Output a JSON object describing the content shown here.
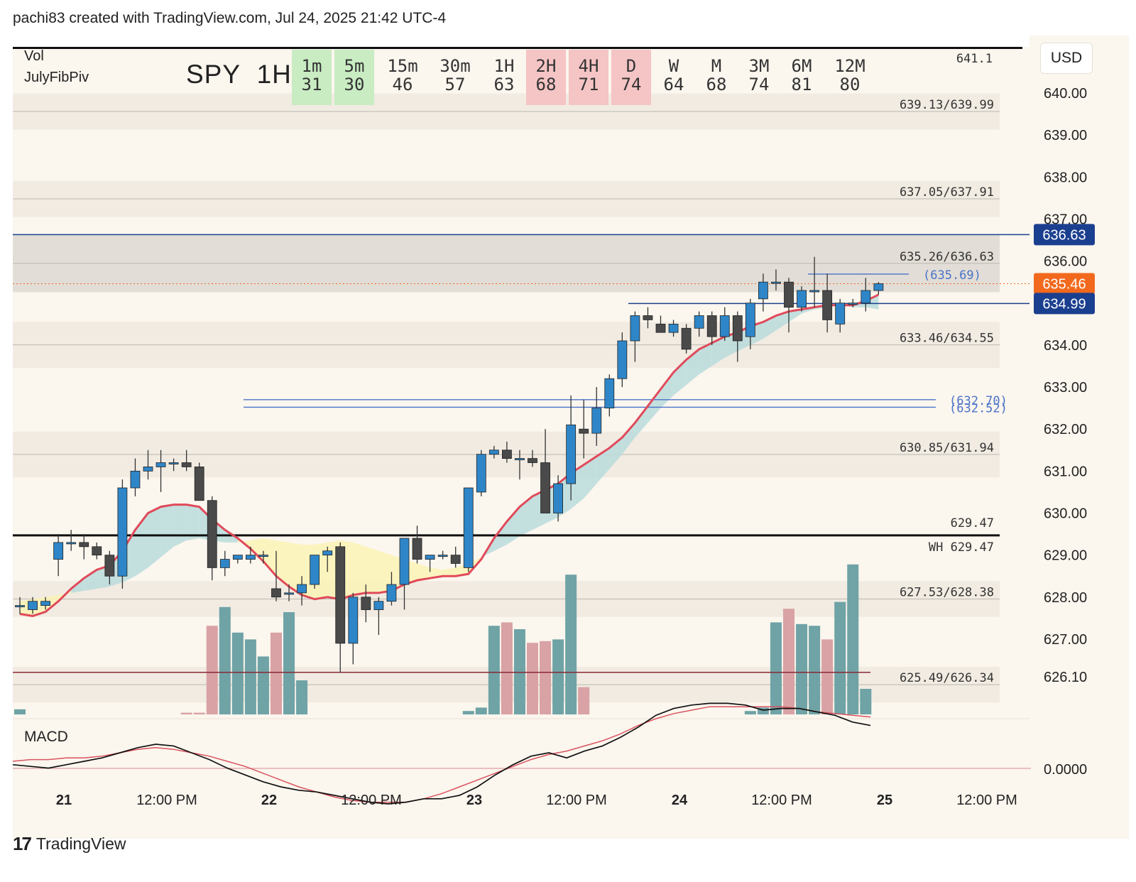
{
  "header_text": "pachi83 created with TradingView.com, Jul 24, 2025 21:42 UTC-4",
  "legend": {
    "vol": "Vol",
    "indicator": "JulyFibPiv"
  },
  "symbol": {
    "ticker": "SPY",
    "interval": "1H"
  },
  "currency": "USD",
  "macd_label": "MACD",
  "brand": "TradingView",
  "top_value": "641.1",
  "timeframes": [
    {
      "tf": "1m",
      "val": "31",
      "color": "green"
    },
    {
      "tf": "5m",
      "val": "30",
      "color": "green"
    },
    {
      "tf": "15m",
      "val": "46",
      "color": "none"
    },
    {
      "tf": "30m",
      "val": "57",
      "color": "none"
    },
    {
      "tf": "1H",
      "val": "63",
      "color": "none"
    },
    {
      "tf": "2H",
      "val": "68",
      "color": "red"
    },
    {
      "tf": "4H",
      "val": "71",
      "color": "red"
    },
    {
      "tf": "D",
      "val": "74",
      "color": "red"
    },
    {
      "tf": "W",
      "val": "64",
      "color": "none"
    },
    {
      "tf": "M",
      "val": "68",
      "color": "none"
    },
    {
      "tf": "3M",
      "val": "74",
      "color": "none"
    },
    {
      "tf": "6M",
      "val": "81",
      "color": "none"
    },
    {
      "tf": "12M",
      "val": "80",
      "color": "none"
    }
  ],
  "colors": {
    "up": "#2e86c8",
    "down": "#4a4a4a",
    "ema": "#e04a5a",
    "cloud_bull": "#b9dcdc",
    "cloud_bear": "#fbf3b5",
    "vol_up": "#6fa3a6",
    "vol_down": "#d9a2a5",
    "last_price": "#f2691d",
    "level_blue": "#1b3f8f"
  },
  "chart_data": {
    "type": "candlestick",
    "title": "SPY 1H",
    "ylim": [
      625.5,
      641.1
    ],
    "y_ticks": [
      "640.00",
      "639.00",
      "638.00",
      "637.00",
      "636.00",
      "634.00",
      "633.00",
      "632.00",
      "631.00",
      "630.00",
      "629.00",
      "628.00",
      "627.00",
      "626.10"
    ],
    "x_tick_labels": [
      "21",
      "12:00 PM",
      "22",
      "12:00 PM",
      "23",
      "12:00 PM",
      "24",
      "12:00 PM",
      "25",
      "12:00 PM"
    ],
    "price_badges": [
      {
        "label": "636.63",
        "price": 636.63,
        "color": "level_blue"
      },
      {
        "label": "635.46",
        "price": 635.46,
        "color": "last_price"
      },
      {
        "label": "634.99",
        "price": 634.99,
        "color": "level_blue"
      }
    ],
    "zones": [
      {
        "label": "639.13/639.99",
        "low": 639.13,
        "high": 639.99
      },
      {
        "label": "637.05/637.91",
        "low": 637.05,
        "high": 637.91
      },
      {
        "label": "635.26/636.63",
        "low": 635.26,
        "high": 636.63
      },
      {
        "label": "633.46/634.55",
        "low": 633.46,
        "high": 634.55
      },
      {
        "label": "630.85/631.94",
        "low": 630.85,
        "high": 631.94
      },
      {
        "label": "627.53/628.38",
        "low": 627.53,
        "high": 628.38
      },
      {
        "label": "625.49/626.34",
        "low": 625.49,
        "high": 626.34
      }
    ],
    "pivot_lines": [
      {
        "label": "629.47",
        "price": 629.47
      },
      {
        "label": "WH 629.47",
        "price": 629.47
      }
    ],
    "marked_levels": [
      {
        "label": "(635.69)",
        "price": 635.69
      },
      {
        "label": "(632.70)",
        "price": 632.7
      },
      {
        "label": "(632.52)",
        "price": 632.52
      }
    ],
    "candles": [
      {
        "o": 627.8,
        "h": 628.0,
        "l": 627.6,
        "c": 627.8
      },
      {
        "o": 627.7,
        "h": 628.0,
        "l": 627.6,
        "c": 627.9
      },
      {
        "o": 627.8,
        "h": 628.0,
        "l": 627.7,
        "c": 627.9
      },
      {
        "o": 628.9,
        "h": 629.5,
        "l": 628.5,
        "c": 629.3
      },
      {
        "o": 629.3,
        "h": 629.6,
        "l": 629.1,
        "c": 629.3
      },
      {
        "o": 629.3,
        "h": 629.5,
        "l": 628.9,
        "c": 629.2
      },
      {
        "o": 629.2,
        "h": 629.3,
        "l": 628.9,
        "c": 629.0
      },
      {
        "o": 629.0,
        "h": 629.1,
        "l": 628.3,
        "c": 628.5
      },
      {
        "o": 628.5,
        "h": 630.8,
        "l": 628.2,
        "c": 630.6
      },
      {
        "o": 630.6,
        "h": 631.3,
        "l": 630.4,
        "c": 631.0
      },
      {
        "o": 631.0,
        "h": 631.5,
        "l": 630.8,
        "c": 631.1
      },
      {
        "o": 631.1,
        "h": 631.5,
        "l": 630.5,
        "c": 631.2
      },
      {
        "o": 631.2,
        "h": 631.3,
        "l": 631.0,
        "c": 631.2
      },
      {
        "o": 631.2,
        "h": 631.5,
        "l": 631.0,
        "c": 631.1
      },
      {
        "o": 631.1,
        "h": 631.2,
        "l": 630.3,
        "c": 630.3
      },
      {
        "o": 630.3,
        "h": 630.4,
        "l": 628.4,
        "c": 628.7
      },
      {
        "o": 628.7,
        "h": 629.1,
        "l": 628.5,
        "c": 628.9
      },
      {
        "o": 628.9,
        "h": 629.0,
        "l": 628.8,
        "c": 629.0
      },
      {
        "o": 628.9,
        "h": 629.2,
        "l": 628.8,
        "c": 629.0
      },
      {
        "o": 629.0,
        "h": 629.1,
        "l": 628.8,
        "c": 629.0
      },
      {
        "o": 628.2,
        "h": 629.1,
        "l": 627.9,
        "c": 628.0
      },
      {
        "o": 628.1,
        "h": 628.3,
        "l": 627.9,
        "c": 628.1
      },
      {
        "o": 628.1,
        "h": 628.5,
        "l": 627.8,
        "c": 628.3
      },
      {
        "o": 628.3,
        "h": 629.0,
        "l": 628.2,
        "c": 629.0
      },
      {
        "o": 629.0,
        "h": 629.2,
        "l": 628.6,
        "c": 629.1
      },
      {
        "o": 629.2,
        "h": 629.3,
        "l": 626.2,
        "c": 626.9
      },
      {
        "o": 626.9,
        "h": 628.1,
        "l": 626.4,
        "c": 628.0
      },
      {
        "o": 628.0,
        "h": 628.3,
        "l": 627.4,
        "c": 627.7
      },
      {
        "o": 627.7,
        "h": 628.0,
        "l": 627.1,
        "c": 627.9
      },
      {
        "o": 627.9,
        "h": 628.6,
        "l": 627.8,
        "c": 628.3
      },
      {
        "o": 628.3,
        "h": 629.4,
        "l": 627.7,
        "c": 629.4
      },
      {
        "o": 629.4,
        "h": 629.7,
        "l": 628.8,
        "c": 628.9
      },
      {
        "o": 628.9,
        "h": 629.0,
        "l": 628.6,
        "c": 629.0
      },
      {
        "o": 629.0,
        "h": 629.1,
        "l": 628.9,
        "c": 629.0
      },
      {
        "o": 629.0,
        "h": 629.2,
        "l": 628.7,
        "c": 628.8
      },
      {
        "o": 628.7,
        "h": 630.6,
        "l": 628.6,
        "c": 630.6
      },
      {
        "o": 630.5,
        "h": 631.5,
        "l": 630.4,
        "c": 631.4
      },
      {
        "o": 631.4,
        "h": 631.6,
        "l": 631.3,
        "c": 631.5
      },
      {
        "o": 631.5,
        "h": 631.7,
        "l": 631.2,
        "c": 631.3
      },
      {
        "o": 631.3,
        "h": 631.5,
        "l": 630.8,
        "c": 631.3
      },
      {
        "o": 631.3,
        "h": 631.5,
        "l": 631.1,
        "c": 631.2
      },
      {
        "o": 631.2,
        "h": 632.0,
        "l": 630.0,
        "c": 630.0
      },
      {
        "o": 630.0,
        "h": 630.9,
        "l": 629.8,
        "c": 630.7
      },
      {
        "o": 630.7,
        "h": 632.8,
        "l": 630.3,
        "c": 632.1
      },
      {
        "o": 632.0,
        "h": 632.7,
        "l": 631.3,
        "c": 631.9
      },
      {
        "o": 631.9,
        "h": 633.0,
        "l": 631.6,
        "c": 632.5
      },
      {
        "o": 632.5,
        "h": 633.3,
        "l": 632.3,
        "c": 633.2
      },
      {
        "o": 633.2,
        "h": 634.3,
        "l": 633.0,
        "c": 634.1
      },
      {
        "o": 634.1,
        "h": 634.8,
        "l": 633.6,
        "c": 634.7
      },
      {
        "o": 634.7,
        "h": 634.9,
        "l": 634.4,
        "c": 634.6
      },
      {
        "o": 634.5,
        "h": 634.7,
        "l": 634.3,
        "c": 634.3
      },
      {
        "o": 634.3,
        "h": 634.6,
        "l": 634.2,
        "c": 634.5
      },
      {
        "o": 634.4,
        "h": 634.5,
        "l": 633.8,
        "c": 633.9
      },
      {
        "o": 634.4,
        "h": 634.8,
        "l": 634.2,
        "c": 634.7
      },
      {
        "o": 634.7,
        "h": 634.8,
        "l": 634.0,
        "c": 634.2
      },
      {
        "o": 634.2,
        "h": 634.9,
        "l": 634.1,
        "c": 634.7
      },
      {
        "o": 634.7,
        "h": 634.8,
        "l": 633.6,
        "c": 634.1
      },
      {
        "o": 634.2,
        "h": 635.1,
        "l": 633.9,
        "c": 635.0
      },
      {
        "o": 635.1,
        "h": 635.7,
        "l": 634.8,
        "c": 635.5
      },
      {
        "o": 635.5,
        "h": 635.8,
        "l": 635.3,
        "c": 635.5
      },
      {
        "o": 635.5,
        "h": 635.6,
        "l": 634.3,
        "c": 634.9
      },
      {
        "o": 634.9,
        "h": 635.4,
        "l": 634.8,
        "c": 635.3
      },
      {
        "o": 635.3,
        "h": 636.1,
        "l": 634.9,
        "c": 635.3
      },
      {
        "o": 635.3,
        "h": 635.7,
        "l": 634.3,
        "c": 634.6
      },
      {
        "o": 634.5,
        "h": 635.1,
        "l": 634.3,
        "c": 635.0
      },
      {
        "o": 635.0,
        "h": 635.1,
        "l": 634.9,
        "c": 635.0
      },
      {
        "o": 635.0,
        "h": 635.6,
        "l": 634.8,
        "c": 635.3
      },
      {
        "o": 635.3,
        "h": 635.5,
        "l": 635.2,
        "c": 635.46
      }
    ],
    "ema": [
      627.6,
      627.55,
      627.65,
      627.9,
      628.2,
      628.45,
      628.65,
      628.75,
      629.1,
      629.6,
      630.0,
      630.15,
      630.2,
      630.2,
      630.15,
      629.85,
      629.6,
      629.4,
      629.15,
      628.85,
      628.5,
      628.25,
      628.05,
      627.95,
      628.0,
      627.95,
      628.05,
      628.1,
      628.1,
      628.15,
      628.3,
      628.4,
      628.45,
      628.5,
      628.5,
      628.55,
      628.9,
      629.4,
      629.8,
      630.15,
      630.4,
      630.55,
      630.7,
      630.95,
      631.15,
      631.35,
      631.55,
      631.8,
      632.15,
      632.55,
      632.95,
      633.35,
      633.65,
      633.9,
      634.05,
      634.2,
      634.3,
      634.45,
      634.55,
      634.7,
      634.8,
      634.85,
      634.9,
      634.95,
      634.95,
      634.95,
      635.05,
      635.2
    ],
    "cloud_ref": [
      627.9,
      627.95,
      628.0,
      628.05,
      628.1,
      628.15,
      628.2,
      628.25,
      628.35,
      628.5,
      628.7,
      628.95,
      629.2,
      629.35,
      629.4,
      629.35,
      629.3,
      629.3,
      629.35,
      629.4,
      629.35,
      629.3,
      629.25,
      629.25,
      629.3,
      629.35,
      629.3,
      629.2,
      629.1,
      629.0,
      628.9,
      628.8,
      628.7,
      628.65,
      628.7,
      628.8,
      628.95,
      629.1,
      629.25,
      629.45,
      629.6,
      629.75,
      629.9,
      630.1,
      630.35,
      630.7,
      631.05,
      631.4,
      631.8,
      632.15,
      632.5,
      632.8,
      633.05,
      633.3,
      633.5,
      633.7,
      633.85,
      634.0,
      634.15,
      634.35,
      634.55,
      634.75,
      634.85,
      634.9,
      634.95,
      634.9,
      634.9,
      634.85
    ],
    "volume": [
      3,
      0,
      0,
      0,
      0,
      0,
      0,
      0,
      0,
      0,
      0,
      0,
      0,
      1,
      1,
      52,
      63,
      48,
      44,
      34,
      48,
      60,
      20,
      0,
      0,
      0,
      0,
      0,
      0,
      0,
      0,
      0,
      0,
      0,
      0,
      2,
      4,
      52,
      54,
      50,
      42,
      43,
      44,
      82,
      16,
      0,
      0,
      0,
      0,
      0,
      0,
      0,
      0,
      0,
      0,
      0,
      0,
      2,
      4,
      54,
      62,
      53,
      52,
      44,
      66,
      88,
      15,
      0,
      0,
      0,
      0,
      0
    ],
    "volume_ma": 26,
    "macd": [
      -0.02,
      -0.03,
      -0.04,
      -0.02,
      0.0,
      0.02,
      0.05,
      0.08,
      0.1,
      0.09,
      0.05,
      0.01,
      -0.04,
      -0.08,
      -0.12,
      -0.15,
      -0.17,
      -0.18,
      -0.2,
      -0.22,
      -0.24,
      -0.25,
      -0.24,
      -0.22,
      -0.22,
      -0.2,
      -0.15,
      -0.08,
      -0.02,
      0.03,
      0.05,
      0.02,
      0.06,
      0.09,
      0.14,
      0.2,
      0.27,
      0.31,
      0.33,
      0.34,
      0.34,
      0.33,
      0.3,
      0.31,
      0.31,
      0.29,
      0.27,
      0.23,
      0.21
    ],
    "macd_signal": [
      0.0,
      0.01,
      0.01,
      0.02,
      0.02,
      0.03,
      0.05,
      0.07,
      0.08,
      0.07,
      0.05,
      0.03,
      0.0,
      -0.03,
      -0.07,
      -0.11,
      -0.15,
      -0.18,
      -0.21,
      -0.23,
      -0.24,
      -0.24,
      -0.24,
      -0.22,
      -0.19,
      -0.15,
      -0.11,
      -0.07,
      -0.03,
      0.01,
      0.04,
      0.06,
      0.09,
      0.12,
      0.16,
      0.21,
      0.25,
      0.28,
      0.3,
      0.32,
      0.32,
      0.32,
      0.32,
      0.32,
      0.31,
      0.29,
      0.28,
      0.27,
      0.26
    ]
  }
}
